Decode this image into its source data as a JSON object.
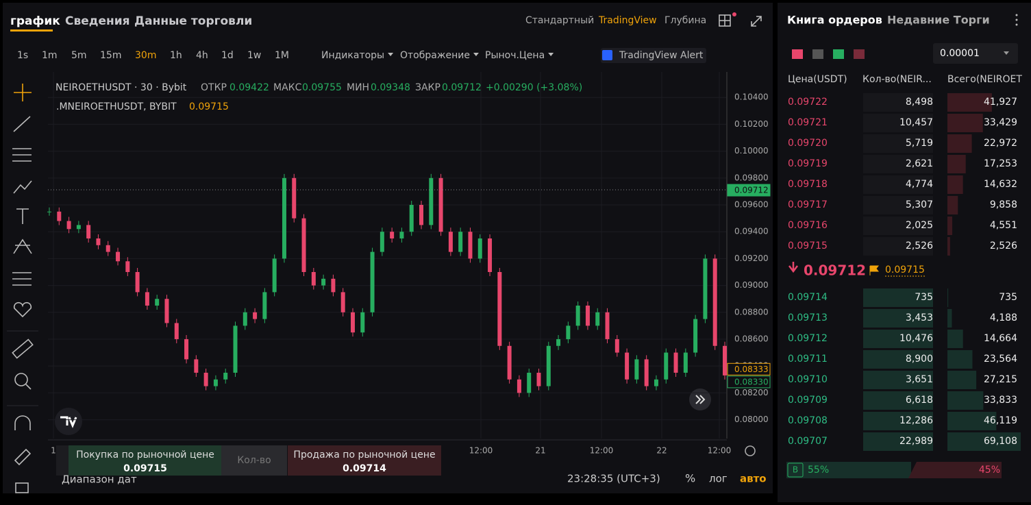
{
  "header": {
    "tabs": [
      "график",
      "Сведения",
      "Данные торговли"
    ],
    "views": [
      "Стандартный",
      "TradingView",
      "Глубина"
    ]
  },
  "toolbar": {
    "intervals": [
      "1s",
      "1m",
      "5m",
      "15m",
      "30m",
      "1h",
      "4h",
      "1d",
      "1w",
      "1M"
    ],
    "menus": [
      "Индикаторы",
      "Отображение",
      "Рыноч.Цена"
    ],
    "alert": "TradingView Alert"
  },
  "legend": {
    "symbol": "NEIROETHUSDT · 30 · Bybit",
    "open_label": "ОТКР",
    "open": "0.09422",
    "high_label": "МАКС",
    "high": "0.09755",
    "low_label": "МИН",
    "low": "0.09348",
    "close_label": "ЗАКР",
    "close": "0.09712",
    "change": "+0.00290 (+3.08%)",
    "mark_symbol": ".MNEIROETHUSDT, BYBIT",
    "mark_price": "0.09715"
  },
  "chart_data": {
    "type": "candlestick",
    "up_color": "#27ae60",
    "down_color": "#e8466c",
    "values": [
      0.0955,
      0.0948,
      0.0942,
      0.0945,
      0.0935,
      0.093,
      0.0925,
      0.0918,
      0.091,
      0.0895,
      0.0885,
      0.089,
      0.0872,
      0.086,
      0.0845,
      0.0835,
      0.0825,
      0.083,
      0.0835,
      0.087,
      0.088,
      0.0875,
      0.0895,
      0.092,
      0.098,
      0.095,
      0.091,
      0.09,
      0.0905,
      0.0895,
      0.088,
      0.0865,
      0.088,
      0.0925,
      0.094,
      0.0935,
      0.094,
      0.096,
      0.0945,
      0.098,
      0.094,
      0.0925,
      0.094,
      0.092,
      0.0935,
      0.091,
      0.0855,
      0.083,
      0.082,
      0.0835,
      0.0825,
      0.0855,
      0.086,
      0.087,
      0.0885,
      0.087,
      0.088,
      0.086,
      0.085,
      0.083,
      0.0845,
      0.0825,
      0.083,
      0.085,
      0.0835,
      0.085,
      0.0875,
      0.092,
      0.0855,
      0.0833
    ],
    "ylim": [
      0.0786,
      0.1059
    ],
    "yticks": [
      {
        "value": 0.08,
        "label": "0.08000"
      },
      {
        "value": 0.082,
        "label": "0.08200"
      },
      {
        "value": 0.084,
        "label": "0.08400"
      },
      {
        "value": 0.086,
        "label": "0.08600"
      },
      {
        "value": 0.088,
        "label": "0.08800"
      },
      {
        "value": 0.09,
        "label": "0.09000"
      },
      {
        "value": 0.092,
        "label": "0.09200"
      },
      {
        "value": 0.094,
        "label": "0.09400"
      },
      {
        "value": 0.096,
        "label": "0.09600"
      },
      {
        "value": 0.098,
        "label": "0.09800"
      },
      {
        "value": 0.1,
        "label": "0.10000"
      },
      {
        "value": 0.102,
        "label": "0.10200"
      },
      {
        "value": 0.104,
        "label": "0.10400"
      }
    ],
    "price_labels": [
      {
        "value": 0.09712,
        "label": "0.09712"
      },
      {
        "value": 0.08333,
        "label": "0.08333"
      },
      {
        "value": 0.0833,
        "label": "0.08330"
      }
    ],
    "xlabels": [
      "1",
      "12:00",
      "21",
      "12:00",
      "22",
      "12:00"
    ],
    "grid": true
  },
  "trade": {
    "buy": "Покупка по рыночной цене",
    "buy_price": "0.09715",
    "qty": "Кол-во",
    "sell": "Продажа по рыночной цене",
    "sell_price": "0.09714"
  },
  "footer": {
    "range": "Диапазон дат",
    "time": "23:28:35 (UTC+3)",
    "percent": "%",
    "log": "лог",
    "auto": "авто"
  },
  "orderbook": {
    "tabs": [
      "Книга ордеров",
      "Недавние Торги"
    ],
    "step": "0.00001",
    "headers": [
      "Цена(USDT)",
      "Кол-во(NEIR...",
      "Всего(NEIROET"
    ],
    "asks": [
      {
        "price": "0.09722",
        "qty": "8,498",
        "total": {
          "value": 41927,
          "label": "41,927"
        }
      },
      {
        "price": "0.09721",
        "qty": "10,457",
        "total": {
          "value": 33429,
          "label": "33,429"
        }
      },
      {
        "price": "0.09720",
        "qty": "5,719",
        "total": {
          "value": 22972,
          "label": "22,972"
        }
      },
      {
        "price": "0.09719",
        "qty": "2,621",
        "total": {
          "value": 17253,
          "label": "17,253"
        }
      },
      {
        "price": "0.09718",
        "qty": "4,774",
        "total": {
          "value": 14632,
          "label": "14,632"
        }
      },
      {
        "price": "0.09717",
        "qty": "5,307",
        "total": {
          "value": 9858,
          "label": "9,858"
        }
      },
      {
        "price": "0.09716",
        "qty": "2,025",
        "total": {
          "value": 4551,
          "label": "4,551"
        }
      },
      {
        "price": "0.09715",
        "qty": "2,526",
        "total": {
          "value": 2526,
          "label": "2,526"
        }
      }
    ],
    "last": "0.09712",
    "mark": "0.09715",
    "bids": [
      {
        "price": "0.09714",
        "qty": "735",
        "total": {
          "value": 735,
          "label": "735"
        }
      },
      {
        "price": "0.09713",
        "qty": "3,453",
        "total": {
          "value": 4188,
          "label": "4,188"
        }
      },
      {
        "price": "0.09712",
        "qty": "10,476",
        "total": {
          "value": 14664,
          "label": "14,664"
        }
      },
      {
        "price": "0.09711",
        "qty": "8,900",
        "total": {
          "value": 23564,
          "label": "23,564"
        }
      },
      {
        "price": "0.09710",
        "qty": "3,651",
        "total": {
          "value": 27215,
          "label": "27,215"
        }
      },
      {
        "price": "0.09709",
        "qty": "6,618",
        "total": {
          "value": 33833,
          "label": "33,833"
        }
      },
      {
        "price": "0.09708",
        "qty": "12,286",
        "total": {
          "value": 46119,
          "label": "46,119"
        }
      },
      {
        "price": "0.09707",
        "qty": "22,989",
        "total": {
          "value": 69108,
          "label": "69,108"
        }
      }
    ],
    "buy_badge": "B",
    "buy_pct": "55%",
    "sell_pct": "45%"
  }
}
